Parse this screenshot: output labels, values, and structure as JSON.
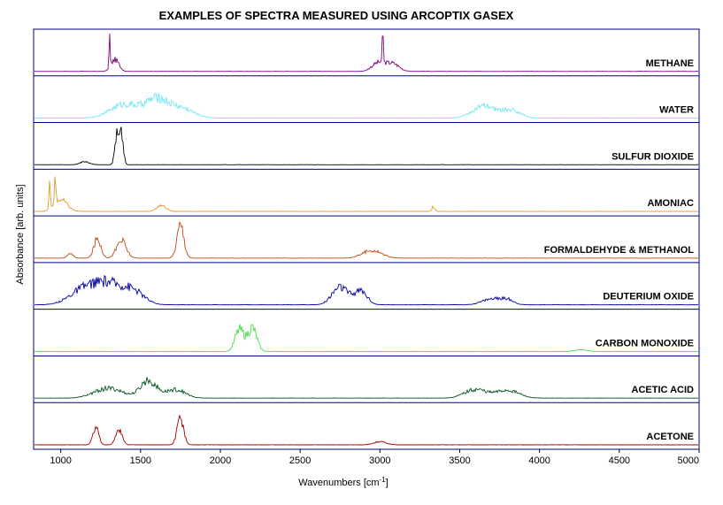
{
  "chart_data": {
    "type": "line",
    "title": "EXAMPLES OF SPECTRA MEASURED USING ARCOPTIX GASEX",
    "xlabel": "Wavenumbers [cm",
    "xlabel_sup": "-1",
    "xlabel_end": "]",
    "ylabel": "Absorbance [arb. units]",
    "xlim": [
      830,
      5000
    ],
    "xticks": [
      1000,
      1500,
      2000,
      2500,
      3000,
      3500,
      4000,
      4500,
      5000
    ],
    "stacked": true,
    "frame_color": "#000080",
    "series": [
      {
        "name": "METHANE",
        "color": "#800080",
        "peaks": [
          [
            1306,
            1.0,
            3
          ],
          [
            1340,
            0.3,
            25
          ],
          [
            3018,
            1.0,
            3
          ],
          [
            2990,
            0.22,
            40
          ],
          [
            3080,
            0.2,
            40
          ]
        ]
      },
      {
        "name": "WATER",
        "color": "#6ee8f5",
        "peaks": [
          [
            1400,
            0.35,
            90
          ],
          [
            1600,
            0.45,
            70
          ],
          [
            1750,
            0.25,
            80
          ],
          [
            3650,
            0.3,
            70
          ],
          [
            3820,
            0.2,
            60
          ]
        ]
      },
      {
        "name": "SULFUR DIOXIDE",
        "color": "#000000",
        "peaks": [
          [
            1350,
            0.75,
            12
          ],
          [
            1380,
            0.8,
            12
          ],
          [
            1150,
            0.08,
            30
          ]
        ]
      },
      {
        "name": "AMONIAC",
        "color": "#e29a2a",
        "peaks": [
          [
            930,
            0.8,
            4
          ],
          [
            965,
            0.9,
            4
          ],
          [
            1000,
            0.3,
            40
          ],
          [
            1630,
            0.15,
            30
          ],
          [
            3335,
            0.12,
            10
          ]
        ]
      },
      {
        "name": "FORMALDEHYDE & METHANOL",
        "color": "#c04a10",
        "peaks": [
          [
            1060,
            0.1,
            20
          ],
          [
            1230,
            0.5,
            22
          ],
          [
            1380,
            0.45,
            30
          ],
          [
            1750,
            0.85,
            22
          ],
          [
            2950,
            0.2,
            60
          ]
        ]
      },
      {
        "name": "DEUTERIUM OXIDE",
        "color": "#0000a0",
        "peaks": [
          [
            1150,
            0.4,
            90
          ],
          [
            1300,
            0.45,
            80
          ],
          [
            1450,
            0.35,
            70
          ],
          [
            2750,
            0.45,
            50
          ],
          [
            2880,
            0.35,
            40
          ],
          [
            3700,
            0.15,
            60
          ],
          [
            3800,
            0.12,
            40
          ]
        ]
      },
      {
        "name": "CARBON MONOXIDE",
        "color": "#44dd44",
        "peaks": [
          [
            2120,
            0.55,
            28
          ],
          [
            2200,
            0.6,
            28
          ],
          [
            4260,
            0.05,
            40
          ]
        ]
      },
      {
        "name": "ACETIC ACID",
        "color": "#005520",
        "peaks": [
          [
            1300,
            0.25,
            90
          ],
          [
            1550,
            0.45,
            50
          ],
          [
            1720,
            0.22,
            60
          ],
          [
            3600,
            0.22,
            70
          ],
          [
            3800,
            0.2,
            70
          ]
        ]
      },
      {
        "name": "ACETONE",
        "color": "#a00000",
        "peaks": [
          [
            1220,
            0.45,
            18
          ],
          [
            1365,
            0.4,
            20
          ],
          [
            1750,
            0.7,
            20
          ],
          [
            3000,
            0.08,
            40
          ]
        ]
      }
    ]
  }
}
